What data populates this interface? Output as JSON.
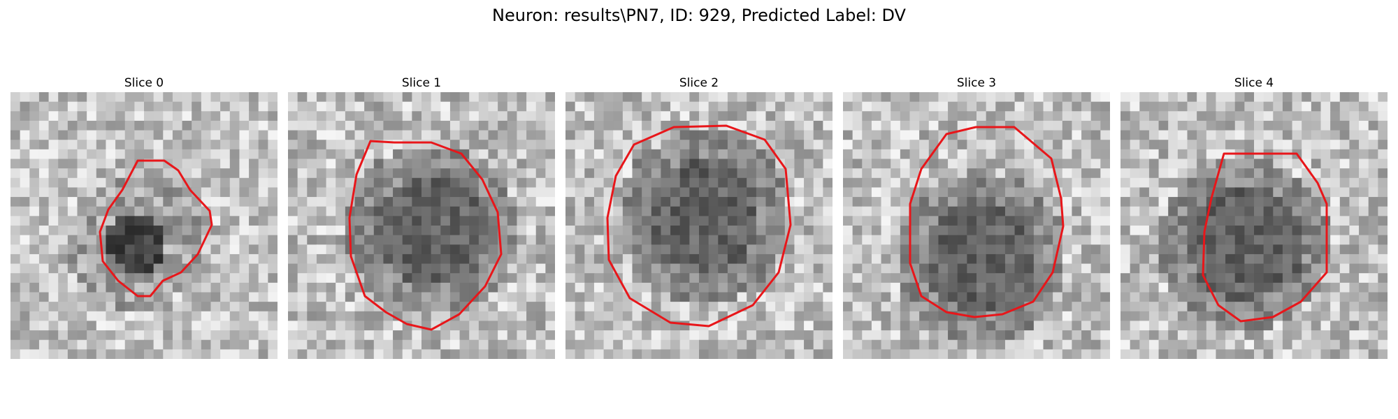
{
  "figure": {
    "title": "Neuron: results\\PN7, ID: 929, Predicted Label: DV",
    "contour_color": "#e8161a"
  },
  "slices": [
    {
      "title": "Slice 0",
      "dark_spot": [
        0.45,
        0.55
      ],
      "ring": false
    },
    {
      "title": "Slice 1",
      "dark_spot": [
        0.52,
        0.5
      ],
      "ring": true
    },
    {
      "title": "Slice 2",
      "dark_spot": [
        0.5,
        0.45
      ],
      "ring": true
    },
    {
      "title": "Slice 3",
      "dark_spot": [
        0.5,
        0.6
      ],
      "ring": true
    },
    {
      "title": "Slice 4",
      "dark_spot": [
        0.45,
        0.55
      ],
      "ring": true
    }
  ]
}
